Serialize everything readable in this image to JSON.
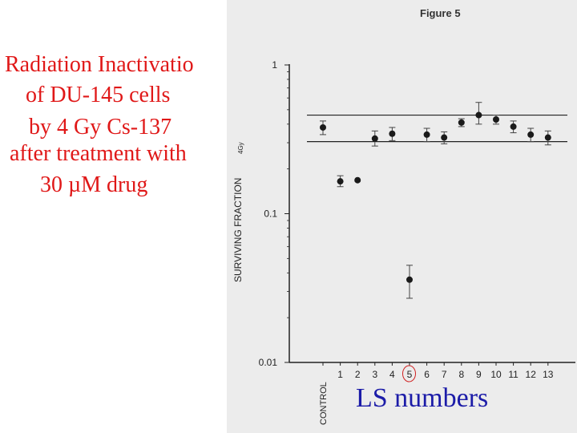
{
  "slide_title": {
    "lines": [
      "Radiation Inactivatio",
      "of DU-145 cells",
      "by 4 Gy Cs-137",
      "after treatment with",
      "30 µM drug"
    ],
    "color": "#e01818"
  },
  "figure_label": "Figure 5",
  "ls_label": {
    "text": "LS numbers",
    "color": "#1c1ca8"
  },
  "chart_data": {
    "type": "scatter",
    "y_scale": "log",
    "ylim": [
      0.01,
      1
    ],
    "ylabel": "SURVIVING FRACTION",
    "ylabel_sub": "4Gy",
    "y_ticks": [
      {
        "value": 0.01,
        "label": "0.01"
      },
      {
        "value": 0.1,
        "label": "0.1"
      },
      {
        "value": 1,
        "label": "1"
      }
    ],
    "categories": [
      "CONTROL",
      "1",
      "2",
      "3",
      "4",
      "5",
      "6",
      "7",
      "8",
      "9",
      "10",
      "11",
      "12",
      "13"
    ],
    "circled_category": "5",
    "values": [
      0.38,
      0.165,
      0.168,
      0.32,
      0.345,
      0.036,
      0.34,
      0.325,
      0.41,
      0.46,
      0.43,
      0.385,
      0.34,
      0.325
    ],
    "error_low": [
      0.34,
      0.152,
      0.168,
      0.285,
      0.31,
      0.027,
      0.305,
      0.295,
      0.385,
      0.4,
      0.4,
      0.35,
      0.305,
      0.29
    ],
    "error_high": [
      0.42,
      0.18,
      0.168,
      0.36,
      0.38,
      0.045,
      0.375,
      0.355,
      0.435,
      0.56,
      0.46,
      0.42,
      0.375,
      0.36
    ],
    "reference_lines": [
      0.46,
      0.305
    ],
    "grid": false,
    "legend": "none"
  }
}
